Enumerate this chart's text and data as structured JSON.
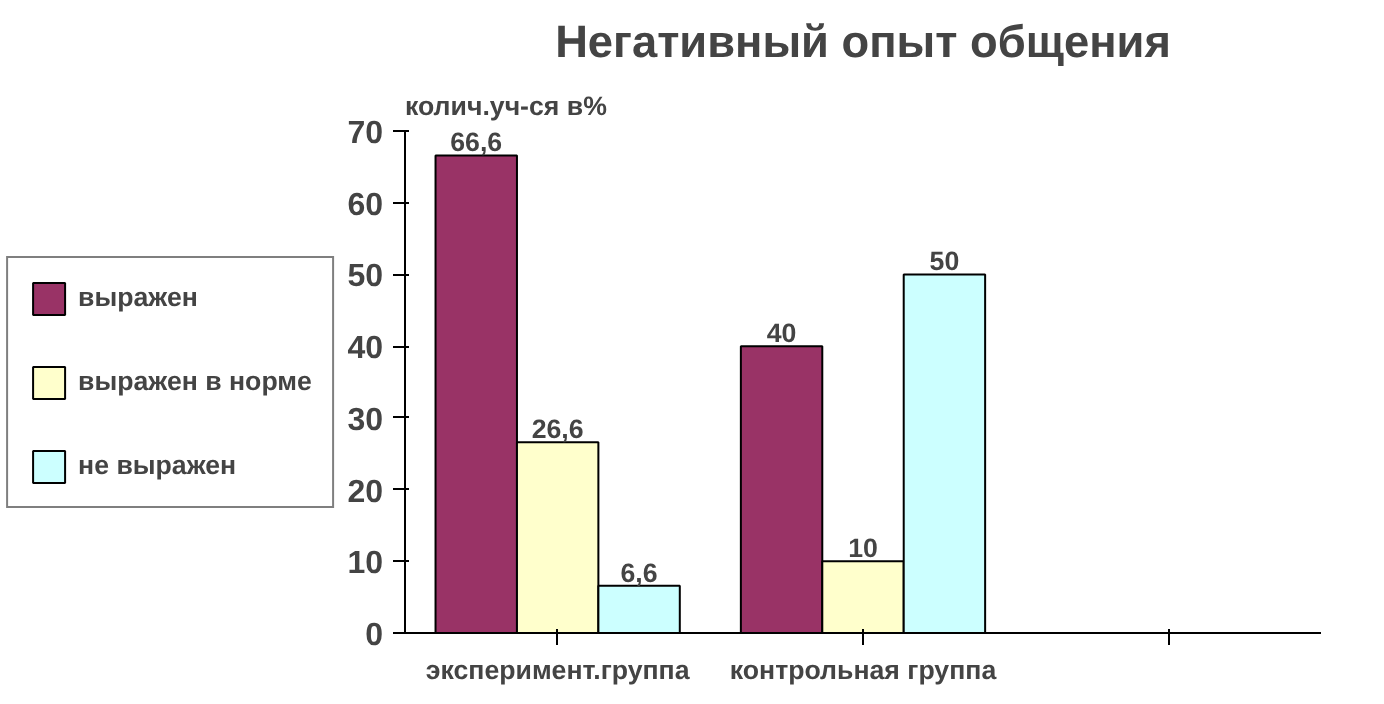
{
  "chart_data": {
    "type": "bar",
    "title": "Негативный опыт общения",
    "ylabel": "колич.уч-ся в%",
    "categories": [
      "эксперимент.группа",
      "контрольная группа",
      null
    ],
    "series": [
      {
        "name": "выражен",
        "color": "#993366",
        "values": [
          66.6,
          40,
          null
        ],
        "value_labels": [
          "66,6",
          "40",
          null
        ]
      },
      {
        "name": "выражен в норме",
        "color": "#ffffcc",
        "values": [
          26.6,
          10,
          null
        ],
        "value_labels": [
          "26,6",
          "10",
          null
        ]
      },
      {
        "name": "не выражен",
        "color": "#ccffff",
        "values": [
          6.6,
          50,
          null
        ],
        "value_labels": [
          "6,6",
          "50",
          null
        ]
      }
    ],
    "ylim": [
      0,
      70
    ],
    "yticks": [
      0,
      10,
      20,
      30,
      40,
      50,
      60,
      70
    ],
    "legend": "left"
  }
}
